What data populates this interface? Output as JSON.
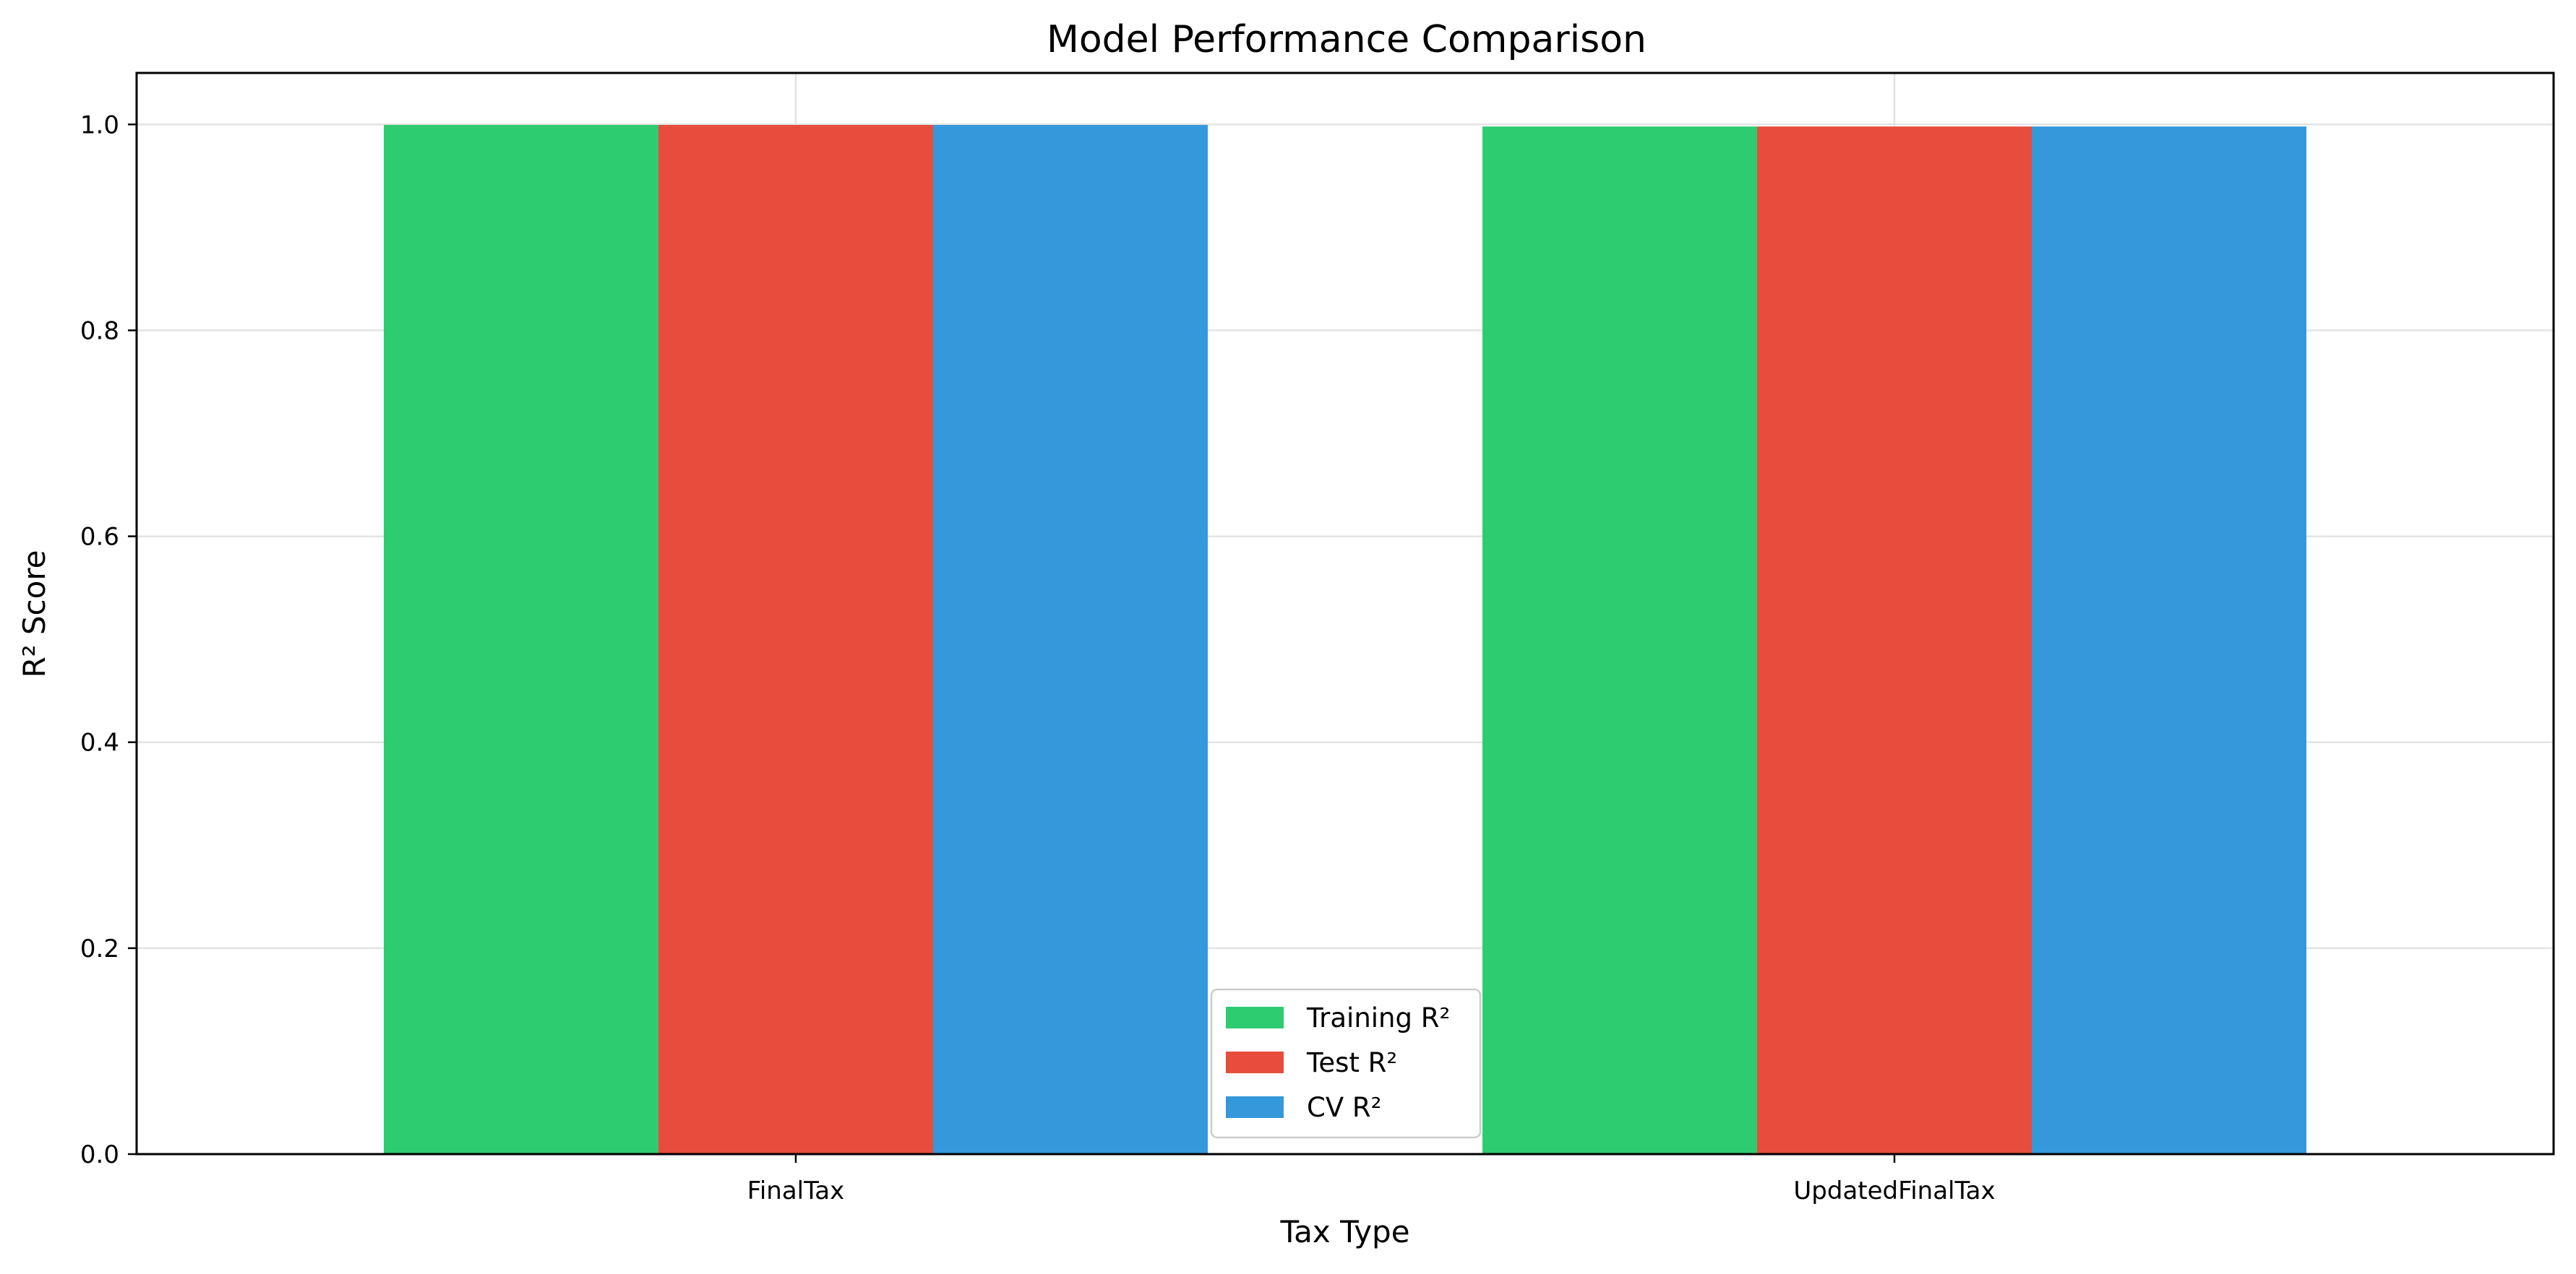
{
  "chart_data": {
    "type": "bar",
    "title": "Model Performance Comparison",
    "xlabel": "Tax Type",
    "ylabel": "R² Score",
    "categories": [
      "FinalTax",
      "UpdatedFinalTax"
    ],
    "series": [
      {
        "name": "Training R²",
        "color": "#2ecc71",
        "values": [
          0.9995,
          0.998
        ]
      },
      {
        "name": "Test R²",
        "color": "#e74c3c",
        "values": [
          0.9995,
          0.998
        ]
      },
      {
        "name": "CV R²",
        "color": "#3498db",
        "values": [
          0.9995,
          0.998
        ]
      }
    ],
    "ylim": [
      0,
      1.05
    ],
    "yticks": [
      "0.0",
      "0.2",
      "0.4",
      "0.6",
      "0.8",
      "1.0"
    ],
    "grid": true,
    "legend_position": "lower-center"
  }
}
